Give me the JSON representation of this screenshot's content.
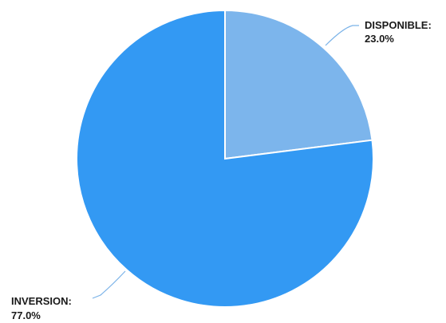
{
  "chart_data": {
    "type": "pie",
    "slices": [
      {
        "label": "DISPONIBLE:",
        "value": 23.0,
        "value_label": "23.0%",
        "color": "#7cb5ec"
      },
      {
        "label": "INVERSION:",
        "value": 77.0,
        "value_label": "77.0%",
        "color": "#3399f3"
      }
    ],
    "start": "12 o'clock",
    "direction": "clockwise",
    "legend": "none",
    "data_labels": "outside with leader lines"
  }
}
